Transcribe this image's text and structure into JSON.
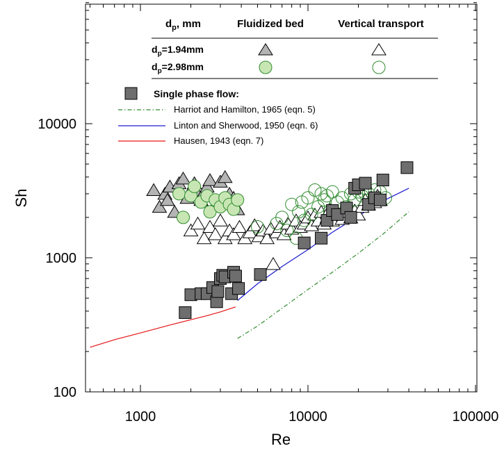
{
  "chart_data": {
    "type": "scatter",
    "xlabel": "Re",
    "ylabel": "Sh",
    "x_scale": "log",
    "y_scale": "log",
    "xlim": [
      500,
      100000
    ],
    "ylim": [
      100,
      80000
    ],
    "x_ticks": [
      1000,
      10000,
      100000
    ],
    "x_tick_labels": [
      "1000",
      "10000",
      "100000"
    ],
    "y_ticks": [
      100,
      1000,
      10000
    ],
    "y_tick_labels": [
      "100",
      "1000",
      "10000"
    ],
    "grid": false,
    "legend": {
      "placement": "top-center",
      "table_header": [
        "d_p, mm",
        "Fluidized bed",
        "Vertical transport"
      ],
      "table_rows": [
        {
          "label_main": "d",
          "label_sub": "p",
          "label_rest": "=1.94mm",
          "marker": "triangle"
        },
        {
          "label_main": "d",
          "label_sub": "p",
          "label_rest": "=2.98mm",
          "marker": "circle"
        }
      ],
      "header_main": "d",
      "header_sub": "p",
      "header_rest": ", mm",
      "single_phase": "Single phase flow:"
    },
    "colors": {
      "fluidized_triangle_fill": "#b4b4b4",
      "fluidized_circle_fill": "#c8e6b4",
      "transport_triangle_fill": "#ffffff",
      "transport_circle_stroke": "#2e8b2e",
      "square_fill": "#6e6e6e",
      "harriot": "#2e8b2e",
      "linton": "#1a1acd",
      "hausen": "#e61414"
    },
    "lines": [
      {
        "name": "Harriot and Hamilton, 1965 (eqn. 5)",
        "color": "#2e8b2e",
        "dash": "dashdot",
        "x": [
          3800,
          5000,
          7000,
          10000,
          14000,
          20000,
          28000,
          40000
        ],
        "y": [
          250,
          310,
          420,
          580,
          780,
          1080,
          1500,
          2200
        ]
      },
      {
        "name": "Linton and Sherwood, 1950 (eqn. 6)",
        "color": "#1a1acd",
        "dash": "solid",
        "x": [
          3800,
          5000,
          7000,
          10000,
          14000,
          20000,
          28000,
          40000
        ],
        "y": [
          480,
          640,
          860,
          1150,
          1550,
          2050,
          2650,
          3300
        ]
      },
      {
        "name": "Hausen, 1943 (eqn. 7)",
        "color": "#e61414",
        "dash": "solid",
        "x": [
          500,
          700,
          1000,
          1500,
          2000,
          2500,
          3000,
          3700
        ],
        "y": [
          215,
          245,
          275,
          315,
          345,
          370,
          395,
          430
        ]
      }
    ],
    "series": [
      {
        "name": "Single phase flow",
        "marker": "square",
        "points": [
          [
            1850,
            390
          ],
          [
            2000,
            530
          ],
          [
            2300,
            540
          ],
          [
            2500,
            540
          ],
          [
            2700,
            600
          ],
          [
            2850,
            470
          ],
          [
            2900,
            560
          ],
          [
            3000,
            700
          ],
          [
            3100,
            740
          ],
          [
            3200,
            720
          ],
          [
            3500,
            540
          ],
          [
            3600,
            780
          ],
          [
            3700,
            730
          ],
          [
            3850,
            590
          ],
          [
            5200,
            750
          ],
          [
            9500,
            1290
          ],
          [
            12000,
            1400
          ],
          [
            13000,
            1900
          ],
          [
            14000,
            2250
          ],
          [
            15000,
            2100
          ],
          [
            17000,
            2350
          ],
          [
            18000,
            2000
          ],
          [
            19000,
            3300
          ],
          [
            20000,
            3500
          ],
          [
            22000,
            3600
          ],
          [
            23000,
            2500
          ],
          [
            25000,
            2800
          ],
          [
            27000,
            2700
          ],
          [
            28000,
            3800
          ],
          [
            39000,
            4700
          ]
        ]
      },
      {
        "name": "d_p=1.94mm Fluidized bed",
        "marker": "triangle-filled",
        "points": [
          [
            1200,
            3200
          ],
          [
            1300,
            2400
          ],
          [
            1400,
            3000
          ],
          [
            1450,
            2700
          ],
          [
            1500,
            3400
          ],
          [
            1600,
            2200
          ],
          [
            1700,
            3600
          ],
          [
            1800,
            3900
          ],
          [
            1900,
            2800
          ],
          [
            2000,
            3200
          ],
          [
            2100,
            3600
          ],
          [
            2200,
            3000
          ],
          [
            2300,
            2700
          ],
          [
            2400,
            3100
          ],
          [
            2500,
            3400
          ],
          [
            2600,
            3800
          ],
          [
            2800,
            2500
          ],
          [
            3000,
            3700
          ],
          [
            3200,
            4000
          ],
          [
            3400,
            3000
          ],
          [
            3600,
            2800
          ],
          [
            3800,
            2300
          ]
        ]
      },
      {
        "name": "d_p=2.98mm Fluidized bed",
        "marker": "circle-filled",
        "points": [
          [
            1700,
            3000
          ],
          [
            1800,
            2000
          ],
          [
            2000,
            2900
          ],
          [
            2100,
            3400
          ],
          [
            2300,
            2600
          ],
          [
            2500,
            2900
          ],
          [
            2600,
            2200
          ],
          [
            2800,
            2700
          ],
          [
            3000,
            2400
          ],
          [
            3200,
            2800
          ],
          [
            3400,
            2500
          ],
          [
            3600,
            2300
          ],
          [
            3800,
            2700
          ]
        ]
      },
      {
        "name": "d_p=1.94mm Vertical transport",
        "marker": "triangle-open",
        "points": [
          [
            2000,
            1600
          ],
          [
            2200,
            1800
          ],
          [
            2400,
            1400
          ],
          [
            2600,
            1700
          ],
          [
            2800,
            1500
          ],
          [
            3000,
            1900
          ],
          [
            3200,
            1400
          ],
          [
            3400,
            1600
          ],
          [
            3600,
            1500
          ],
          [
            3900,
            1700
          ],
          [
            4200,
            1400
          ],
          [
            4500,
            1550
          ],
          [
            4800,
            1750
          ],
          [
            5100,
            1450
          ],
          [
            5400,
            1600
          ],
          [
            5700,
            1400
          ],
          [
            6000,
            1650
          ],
          [
            6200,
            900
          ],
          [
            6500,
            1550
          ],
          [
            6800,
            1700
          ],
          [
            7200,
            1500
          ],
          [
            7600,
            1800
          ],
          [
            8000,
            1650
          ],
          [
            8500,
            1900
          ],
          [
            9000,
            1700
          ],
          [
            9500,
            1800
          ],
          [
            10000,
            2000
          ],
          [
            10500,
            1750
          ],
          [
            11000,
            2100
          ],
          [
            11500,
            1900
          ],
          [
            12000,
            2200
          ],
          [
            12500,
            1800
          ],
          [
            13000,
            2000
          ],
          [
            13500,
            2300
          ],
          [
            14000,
            1900
          ],
          [
            15000,
            2100
          ],
          [
            16000,
            1950
          ],
          [
            17000,
            2200
          ],
          [
            18000,
            2000
          ],
          [
            19000,
            2250
          ],
          [
            20000,
            2100
          ],
          [
            21000,
            2400
          ],
          [
            22000,
            2700
          ],
          [
            23000,
            2500
          ],
          [
            24000,
            2800
          ],
          [
            25000,
            2600
          ],
          [
            26000,
            2900
          ],
          [
            27000,
            2700
          ]
        ]
      },
      {
        "name": "d_p=2.98mm Vertical transport",
        "marker": "circle-open",
        "points": [
          [
            5000,
            1700
          ],
          [
            6500,
            1800
          ],
          [
            7000,
            2000
          ],
          [
            7500,
            1600
          ],
          [
            8000,
            2500
          ],
          [
            8500,
            1400
          ],
          [
            8800,
            2200
          ],
          [
            9200,
            2600
          ],
          [
            9500,
            1900
          ],
          [
            10000,
            2800
          ],
          [
            10500,
            2100
          ],
          [
            11000,
            3200
          ],
          [
            11500,
            2400
          ],
          [
            12000,
            3000
          ],
          [
            12500,
            2700
          ],
          [
            13000,
            2900
          ],
          [
            13500,
            2200
          ],
          [
            14000,
            3100
          ],
          [
            15000,
            2600
          ],
          [
            16000,
            2800
          ],
          [
            17000,
            2400
          ],
          [
            18000,
            3000
          ],
          [
            19000,
            2700
          ],
          [
            20000,
            3100
          ],
          [
            21000,
            2900
          ],
          [
            22000,
            3300
          ],
          [
            23000,
            3000
          ],
          [
            25000,
            3200
          ],
          [
            27000,
            3100
          ],
          [
            29000,
            2800
          ]
        ]
      }
    ]
  }
}
